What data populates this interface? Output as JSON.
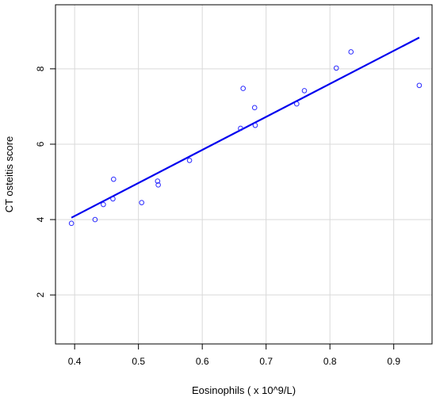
{
  "chart_data": {
    "type": "scatter",
    "title": "",
    "xlabel": "Eosinophils ( x 10^9/L)",
    "ylabel": "CT osteitis score",
    "xlim": [
      0.37,
      0.96
    ],
    "ylim": [
      0.7,
      9.7
    ],
    "xticks": [
      0.4,
      0.5,
      0.6,
      0.7,
      0.8,
      0.9
    ],
    "yticks": [
      2,
      4,
      6,
      8
    ],
    "xtick_labels": [
      "0.4",
      "0.5",
      "0.6",
      "0.7",
      "0.8",
      "0.9"
    ],
    "ytick_labels": [
      "2",
      "4",
      "6",
      "8"
    ],
    "grid": true,
    "point_color": "#2a2aff",
    "line_color": "#0000ee",
    "points": [
      {
        "x": 0.395,
        "y": 3.9
      },
      {
        "x": 0.432,
        "y": 4.0
      },
      {
        "x": 0.445,
        "y": 4.4
      },
      {
        "x": 0.46,
        "y": 4.55
      },
      {
        "x": 0.461,
        "y": 5.07
      },
      {
        "x": 0.505,
        "y": 4.45
      },
      {
        "x": 0.53,
        "y": 5.02
      },
      {
        "x": 0.531,
        "y": 4.92
      },
      {
        "x": 0.58,
        "y": 5.57
      },
      {
        "x": 0.66,
        "y": 6.42
      },
      {
        "x": 0.664,
        "y": 7.48
      },
      {
        "x": 0.682,
        "y": 6.97
      },
      {
        "x": 0.683,
        "y": 6.5
      },
      {
        "x": 0.748,
        "y": 7.07
      },
      {
        "x": 0.76,
        "y": 7.42
      },
      {
        "x": 0.81,
        "y": 8.02
      },
      {
        "x": 0.833,
        "y": 8.45
      },
      {
        "x": 0.94,
        "y": 7.56
      }
    ],
    "fit_line": {
      "x": [
        0.395,
        0.94
      ],
      "y": [
        4.05,
        8.83
      ]
    }
  }
}
